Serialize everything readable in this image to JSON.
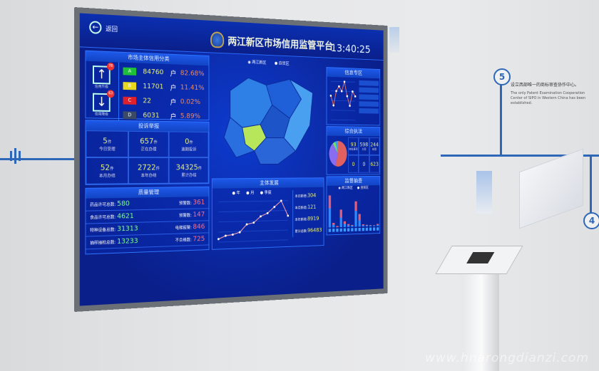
{
  "wall": {
    "step5": "5",
    "step4": "4",
    "caption_cn": "设立西部唯一的商标审查协作中心。",
    "caption_en": "The only Patent Examination Cooperation Center of SIPO in Western China has been established."
  },
  "header": {
    "back": "返回",
    "title": "两江新区市场信用监管平台",
    "time": "13:40:25"
  },
  "credit": {
    "title": "市场主体信用分类",
    "up_label": "信用升级",
    "up_count": "78",
    "down_label": "信用降级",
    "down_count": "63",
    "rows": [
      {
        "grade": "A",
        "count": "84760",
        "unit": "户",
        "pct": "82.68%",
        "color": "#1fbf3a"
      },
      {
        "grade": "B",
        "count": "11701",
        "unit": "户",
        "pct": "11.41%",
        "color": "#e8d820"
      },
      {
        "grade": "C",
        "count": "22",
        "unit": "户",
        "pct": "0.02%",
        "color": "#e0202a"
      },
      {
        "grade": "D",
        "count": "6031",
        "unit": "户",
        "pct": "5.89%",
        "color": "#3b4a66"
      }
    ]
  },
  "complaints": {
    "title": "投诉举报",
    "items": [
      {
        "value": "5",
        "unit": "件",
        "label": "今日受理"
      },
      {
        "value": "657",
        "unit": "件",
        "label": "正在办理"
      },
      {
        "value": "0",
        "unit": "件",
        "label": "逾期投诉"
      },
      {
        "value": "52",
        "unit": "件",
        "label": "本月办结"
      },
      {
        "value": "2722",
        "unit": "件",
        "label": "本年办结"
      },
      {
        "value": "34325",
        "unit": "件",
        "label": "累计办结"
      }
    ]
  },
  "quality": {
    "title": "质量管理",
    "left": [
      {
        "label": "药品许可总数:",
        "value": "580"
      },
      {
        "label": "食品许可总数:",
        "value": "4621"
      },
      {
        "label": "特种设备总数:",
        "value": "31313"
      },
      {
        "label": "抽样抽检总数:",
        "value": "13233"
      }
    ],
    "right": [
      {
        "label": "预警数:",
        "value": "361"
      },
      {
        "label": "预警数:",
        "value": "147"
      },
      {
        "label": "电梯报警:",
        "value": "846"
      },
      {
        "label": "不合格数:",
        "value": "725"
      }
    ]
  },
  "map": {
    "legend": [
      "两江新区",
      "自贸区"
    ]
  },
  "development": {
    "title": "主体发展",
    "legend": [
      "年",
      "月",
      "季度"
    ],
    "series": [
      1,
      2,
      2.3,
      3,
      5.5,
      6,
      8,
      9,
      11,
      13,
      8
    ],
    "stats": [
      {
        "label": "本日新增:",
        "value": "304"
      },
      {
        "label": "本月新增:",
        "value": "121"
      },
      {
        "label": "本年新增:",
        "value": "8919"
      },
      {
        "label": "累计总数:",
        "value": "96483"
      }
    ]
  },
  "info": {
    "title": "信息专区",
    "series": [
      5,
      3,
      6,
      7,
      6,
      8,
      5,
      3,
      6,
      5
    ]
  },
  "enforcement": {
    "title": "综合执法",
    "items": [
      {
        "value": "93",
        "label": "审批事项"
      },
      {
        "value": "598",
        "label": "立案"
      },
      {
        "value": "244",
        "label": "结案"
      },
      {
        "value": "0",
        "label": ""
      },
      {
        "value": "0",
        "label": ""
      },
      {
        "value": "623",
        "label": ""
      }
    ],
    "pie": [
      {
        "value": 55,
        "color": "#e06060"
      },
      {
        "value": 35,
        "color": "#8a6cf0"
      },
      {
        "value": 5,
        "color": "#6ee06e"
      },
      {
        "value": 5,
        "color": "#3aa0ff"
      }
    ]
  },
  "inspection": {
    "title": "监督抽查",
    "legend": [
      "两江新区",
      "自贸区"
    ],
    "bars": [
      [
        60,
        40
      ],
      [
        8,
        6
      ],
      [
        0,
        4
      ],
      [
        30,
        25
      ],
      [
        10,
        8
      ],
      [
        5,
        4
      ],
      [
        4,
        2
      ],
      [
        50,
        30
      ],
      [
        20,
        20
      ],
      [
        4,
        3
      ],
      [
        3,
        2
      ],
      [
        3,
        1
      ],
      [
        2,
        1
      ],
      [
        4,
        3
      ]
    ]
  },
  "watermark": "www.hnarongdianzi.com"
}
